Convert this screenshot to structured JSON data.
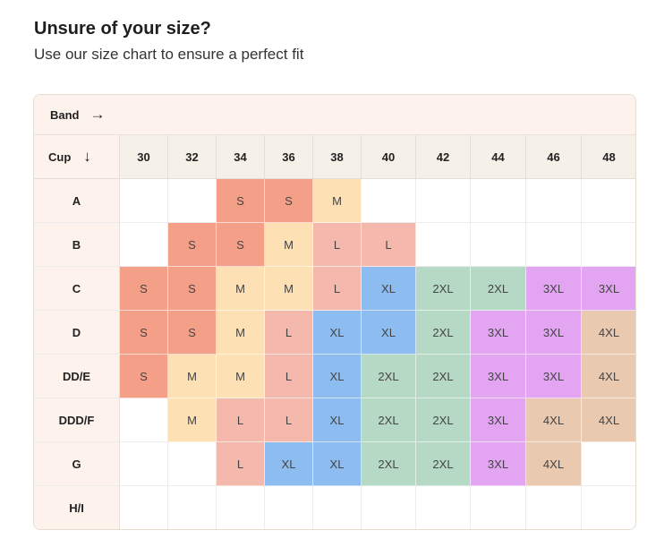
{
  "header": {
    "title": "Unsure of your size?",
    "subtitle": "Use our size chart to ensure a perfect fit"
  },
  "chart": {
    "band_label": "Band",
    "band_arrow": "→",
    "cup_label": "Cup",
    "cup_arrow": "↓",
    "bands": [
      "30",
      "32",
      "34",
      "36",
      "38",
      "40",
      "42",
      "44",
      "46",
      "48"
    ],
    "cups": [
      "A",
      "B",
      "C",
      "D",
      "DD/E",
      "DDD/F",
      "G",
      "H/I"
    ],
    "sizes": [
      [
        "",
        "",
        "S",
        "S",
        "M",
        "",
        "",
        "",
        "",
        ""
      ],
      [
        "",
        "S",
        "S",
        "M",
        "L",
        "L",
        "",
        "",
        "",
        ""
      ],
      [
        "S",
        "S",
        "M",
        "M",
        "L",
        "XL",
        "2XL",
        "2XL",
        "3XL",
        "3XL"
      ],
      [
        "S",
        "S",
        "M",
        "L",
        "XL",
        "XL",
        "2XL",
        "3XL",
        "3XL",
        "4XL"
      ],
      [
        "S",
        "M",
        "M",
        "L",
        "XL",
        "2XL",
        "2XL",
        "3XL",
        "3XL",
        "4XL"
      ],
      [
        "",
        "M",
        "L",
        "L",
        "XL",
        "2XL",
        "2XL",
        "3XL",
        "4XL",
        "4XL"
      ],
      [
        "",
        "",
        "L",
        "XL",
        "XL",
        "2XL",
        "2XL",
        "3XL",
        "4XL",
        ""
      ],
      [
        "",
        "",
        "",
        "",
        "",
        "",
        "",
        "",
        "",
        ""
      ]
    ],
    "size_colors": {
      "S": "#f4a089",
      "M": "#fde0b3",
      "L": "#f4b8ac",
      "XL": "#8cbcf0",
      "2XL": "#b5d9c4",
      "3XL": "#e3a4f2",
      "4XL": "#e9c9b0"
    }
  }
}
